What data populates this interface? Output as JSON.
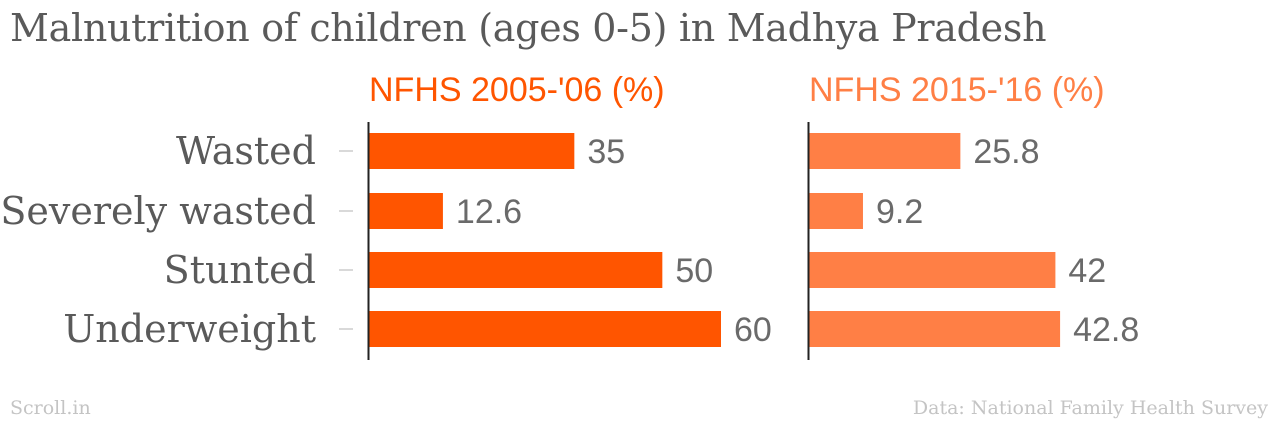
{
  "title": "Malnutrition of children (ages 0-5) in Madhya Pradesh",
  "source": "Data: National Family Health Survey",
  "brand": "Scroll.in",
  "colors": {
    "series1": "#ff5500",
    "series2": "#ff7f45",
    "text": "#5a5a5a",
    "axis": "#222222",
    "tick": "#cccccc"
  },
  "chart_data": {
    "type": "bar",
    "orientation": "horizontal",
    "title": "Malnutrition of children (ages 0-5) in Madhya Pradesh",
    "categories": [
      "Wasted",
      "Severely wasted",
      "Stunted",
      "Underweight"
    ],
    "series": [
      {
        "name": "NFHS 2005-'06 (%)",
        "values": [
          35,
          12.6,
          50,
          60
        ],
        "labels": [
          "35",
          "12.6",
          "50",
          "60"
        ]
      },
      {
        "name": "NFHS 2015-'16 (%)",
        "values": [
          25.8,
          9.2,
          42,
          42.8
        ],
        "labels": [
          "25.8",
          "9.2",
          "42",
          "42.8"
        ]
      }
    ],
    "xlim": [
      0,
      60
    ],
    "grid": false,
    "legend": "panel headers"
  }
}
